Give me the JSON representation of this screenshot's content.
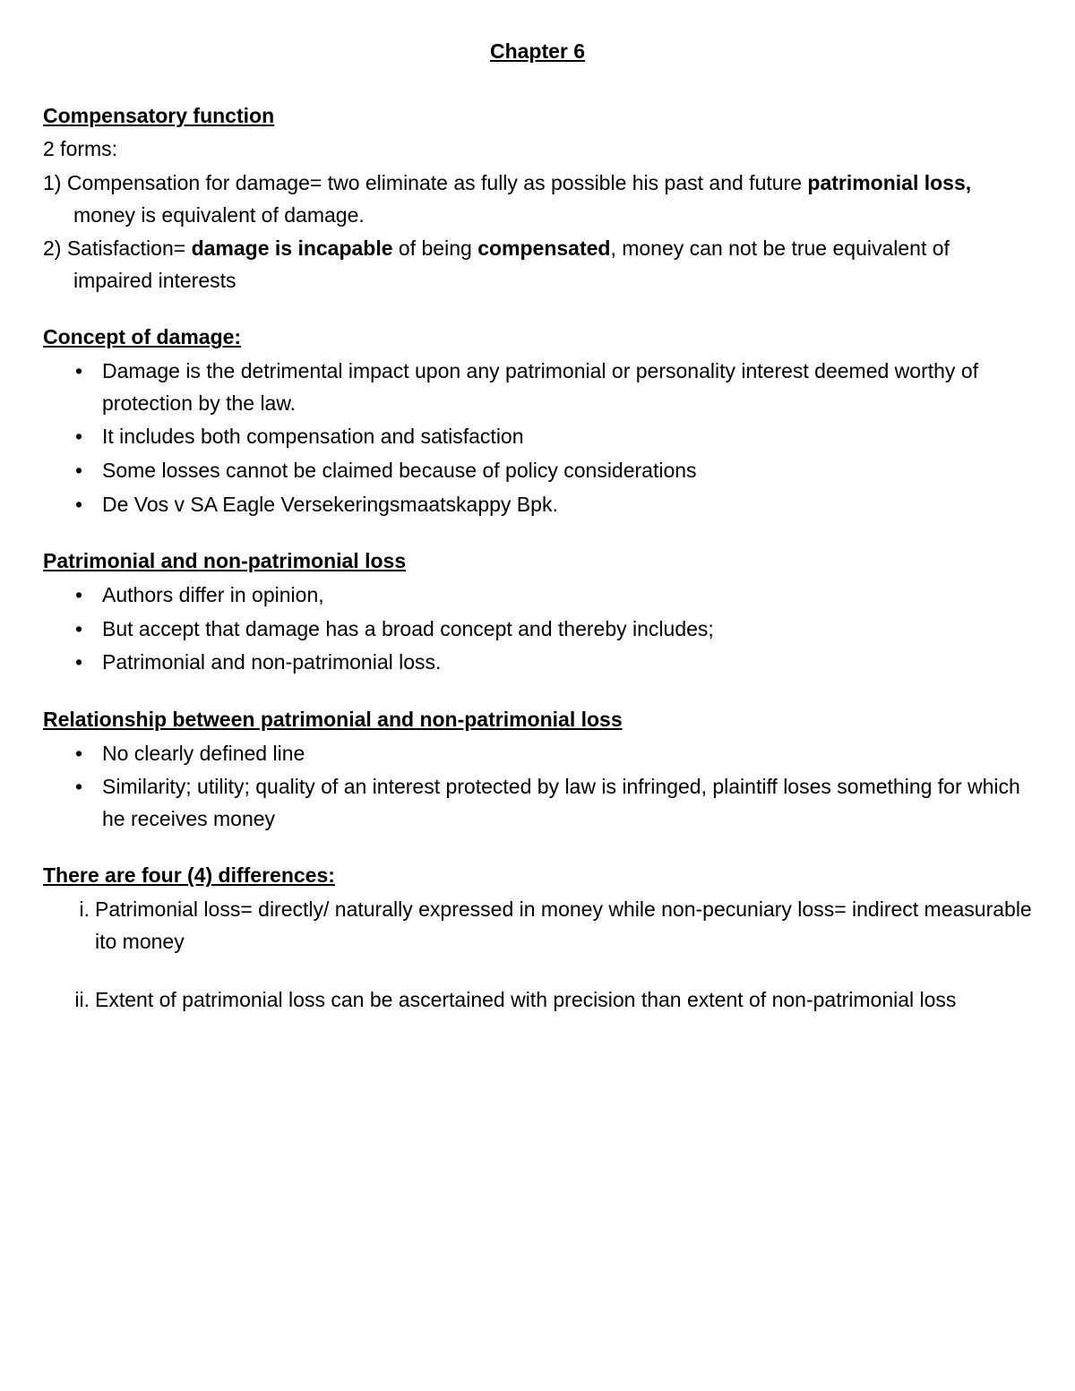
{
  "chapter_title": "Chapter 6",
  "sections": {
    "compensatory": {
      "heading": "Compensatory function",
      "intro": "2 forms:",
      "items": [
        {
          "marker": "1)",
          "pre": "Compensation for damage= two eliminate as fully as possible his past and future ",
          "bold1": "patrimonial loss, ",
          "post": "money is equivalent of damage."
        },
        {
          "marker": "2)",
          "pre": "Satisfaction= ",
          "bold1": "damage is incapable",
          "mid": " of being ",
          "bold2": "compensated",
          "post": ", money can not be true equivalent of impaired interests"
        }
      ]
    },
    "concept": {
      "heading": "Concept of damage:",
      "bullets": [
        "Damage is the detrimental impact upon any patrimonial or personality interest deemed worthy of protection by the law.",
        "It includes both compensation and satisfaction",
        "Some losses cannot be claimed because of policy considerations",
        "De Vos v SA Eagle Versekeringsmaatskappy Bpk."
      ]
    },
    "patnonpat": {
      "heading": "Patrimonial and non-patrimonial loss",
      "bullets": [
        "Authors differ in opinion,",
        "But accept that damage has a broad concept and thereby includes;",
        " Patrimonial and non-patrimonial loss."
      ]
    },
    "relationship": {
      "heading": "Relationship between patrimonial and non-patrimonial loss",
      "bullets": [
        "No clearly defined line",
        "Similarity; utility; quality of an interest protected by law is infringed, plaintiff loses something for which he receives money"
      ]
    },
    "differences": {
      "heading": "There are four (4) differences:",
      "items": [
        {
          "marker": "i.",
          "text": "Patrimonial loss= directly/ naturally expressed in money while non-pecuniary loss= indirect measurable ito money"
        },
        {
          "marker": "ii.",
          "text": "Extent of patrimonial loss can be ascertained with precision than extent of non-patrimonial loss"
        }
      ]
    }
  }
}
